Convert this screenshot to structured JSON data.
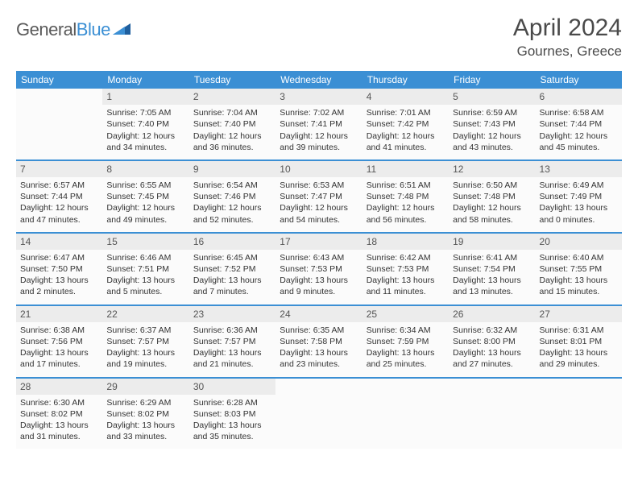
{
  "logo": {
    "word1": "General",
    "word2": "Blue"
  },
  "title": "April 2024",
  "location": "Gournes, Greece",
  "colors": {
    "brand_blue": "#3b8fd4",
    "text_gray": "#4a4a4a",
    "cell_bg": "#fbfbfb",
    "daynum_bg": "#ececec"
  },
  "days_of_week": [
    "Sunday",
    "Monday",
    "Tuesday",
    "Wednesday",
    "Thursday",
    "Friday",
    "Saturday"
  ],
  "weeks": [
    [
      null,
      {
        "n": "1",
        "sr": "Sunrise: 7:05 AM",
        "ss": "Sunset: 7:40 PM",
        "d1": "Daylight: 12 hours",
        "d2": "and 34 minutes."
      },
      {
        "n": "2",
        "sr": "Sunrise: 7:04 AM",
        "ss": "Sunset: 7:40 PM",
        "d1": "Daylight: 12 hours",
        "d2": "and 36 minutes."
      },
      {
        "n": "3",
        "sr": "Sunrise: 7:02 AM",
        "ss": "Sunset: 7:41 PM",
        "d1": "Daylight: 12 hours",
        "d2": "and 39 minutes."
      },
      {
        "n": "4",
        "sr": "Sunrise: 7:01 AM",
        "ss": "Sunset: 7:42 PM",
        "d1": "Daylight: 12 hours",
        "d2": "and 41 minutes."
      },
      {
        "n": "5",
        "sr": "Sunrise: 6:59 AM",
        "ss": "Sunset: 7:43 PM",
        "d1": "Daylight: 12 hours",
        "d2": "and 43 minutes."
      },
      {
        "n": "6",
        "sr": "Sunrise: 6:58 AM",
        "ss": "Sunset: 7:44 PM",
        "d1": "Daylight: 12 hours",
        "d2": "and 45 minutes."
      }
    ],
    [
      {
        "n": "7",
        "sr": "Sunrise: 6:57 AM",
        "ss": "Sunset: 7:44 PM",
        "d1": "Daylight: 12 hours",
        "d2": "and 47 minutes."
      },
      {
        "n": "8",
        "sr": "Sunrise: 6:55 AM",
        "ss": "Sunset: 7:45 PM",
        "d1": "Daylight: 12 hours",
        "d2": "and 49 minutes."
      },
      {
        "n": "9",
        "sr": "Sunrise: 6:54 AM",
        "ss": "Sunset: 7:46 PM",
        "d1": "Daylight: 12 hours",
        "d2": "and 52 minutes."
      },
      {
        "n": "10",
        "sr": "Sunrise: 6:53 AM",
        "ss": "Sunset: 7:47 PM",
        "d1": "Daylight: 12 hours",
        "d2": "and 54 minutes."
      },
      {
        "n": "11",
        "sr": "Sunrise: 6:51 AM",
        "ss": "Sunset: 7:48 PM",
        "d1": "Daylight: 12 hours",
        "d2": "and 56 minutes."
      },
      {
        "n": "12",
        "sr": "Sunrise: 6:50 AM",
        "ss": "Sunset: 7:48 PM",
        "d1": "Daylight: 12 hours",
        "d2": "and 58 minutes."
      },
      {
        "n": "13",
        "sr": "Sunrise: 6:49 AM",
        "ss": "Sunset: 7:49 PM",
        "d1": "Daylight: 13 hours",
        "d2": "and 0 minutes."
      }
    ],
    [
      {
        "n": "14",
        "sr": "Sunrise: 6:47 AM",
        "ss": "Sunset: 7:50 PM",
        "d1": "Daylight: 13 hours",
        "d2": "and 2 minutes."
      },
      {
        "n": "15",
        "sr": "Sunrise: 6:46 AM",
        "ss": "Sunset: 7:51 PM",
        "d1": "Daylight: 13 hours",
        "d2": "and 5 minutes."
      },
      {
        "n": "16",
        "sr": "Sunrise: 6:45 AM",
        "ss": "Sunset: 7:52 PM",
        "d1": "Daylight: 13 hours",
        "d2": "and 7 minutes."
      },
      {
        "n": "17",
        "sr": "Sunrise: 6:43 AM",
        "ss": "Sunset: 7:53 PM",
        "d1": "Daylight: 13 hours",
        "d2": "and 9 minutes."
      },
      {
        "n": "18",
        "sr": "Sunrise: 6:42 AM",
        "ss": "Sunset: 7:53 PM",
        "d1": "Daylight: 13 hours",
        "d2": "and 11 minutes."
      },
      {
        "n": "19",
        "sr": "Sunrise: 6:41 AM",
        "ss": "Sunset: 7:54 PM",
        "d1": "Daylight: 13 hours",
        "d2": "and 13 minutes."
      },
      {
        "n": "20",
        "sr": "Sunrise: 6:40 AM",
        "ss": "Sunset: 7:55 PM",
        "d1": "Daylight: 13 hours",
        "d2": "and 15 minutes."
      }
    ],
    [
      {
        "n": "21",
        "sr": "Sunrise: 6:38 AM",
        "ss": "Sunset: 7:56 PM",
        "d1": "Daylight: 13 hours",
        "d2": "and 17 minutes."
      },
      {
        "n": "22",
        "sr": "Sunrise: 6:37 AM",
        "ss": "Sunset: 7:57 PM",
        "d1": "Daylight: 13 hours",
        "d2": "and 19 minutes."
      },
      {
        "n": "23",
        "sr": "Sunrise: 6:36 AM",
        "ss": "Sunset: 7:57 PM",
        "d1": "Daylight: 13 hours",
        "d2": "and 21 minutes."
      },
      {
        "n": "24",
        "sr": "Sunrise: 6:35 AM",
        "ss": "Sunset: 7:58 PM",
        "d1": "Daylight: 13 hours",
        "d2": "and 23 minutes."
      },
      {
        "n": "25",
        "sr": "Sunrise: 6:34 AM",
        "ss": "Sunset: 7:59 PM",
        "d1": "Daylight: 13 hours",
        "d2": "and 25 minutes."
      },
      {
        "n": "26",
        "sr": "Sunrise: 6:32 AM",
        "ss": "Sunset: 8:00 PM",
        "d1": "Daylight: 13 hours",
        "d2": "and 27 minutes."
      },
      {
        "n": "27",
        "sr": "Sunrise: 6:31 AM",
        "ss": "Sunset: 8:01 PM",
        "d1": "Daylight: 13 hours",
        "d2": "and 29 minutes."
      }
    ],
    [
      {
        "n": "28",
        "sr": "Sunrise: 6:30 AM",
        "ss": "Sunset: 8:02 PM",
        "d1": "Daylight: 13 hours",
        "d2": "and 31 minutes."
      },
      {
        "n": "29",
        "sr": "Sunrise: 6:29 AM",
        "ss": "Sunset: 8:02 PM",
        "d1": "Daylight: 13 hours",
        "d2": "and 33 minutes."
      },
      {
        "n": "30",
        "sr": "Sunrise: 6:28 AM",
        "ss": "Sunset: 8:03 PM",
        "d1": "Daylight: 13 hours",
        "d2": "and 35 minutes."
      },
      null,
      null,
      null,
      null
    ]
  ]
}
